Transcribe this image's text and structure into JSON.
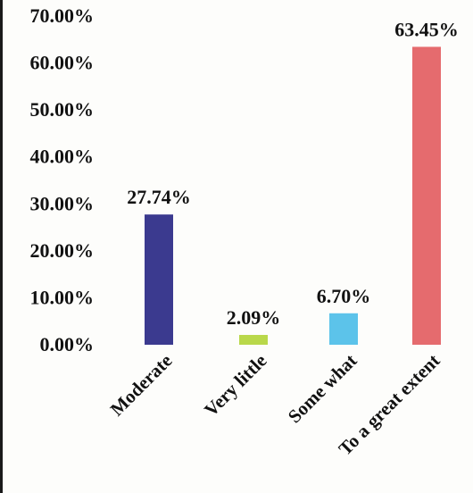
{
  "chart_data": {
    "type": "bar",
    "categories": [
      "Moderate",
      "Very little",
      "Some what",
      "To a great extent"
    ],
    "values": [
      27.74,
      2.09,
      6.7,
      63.45
    ],
    "value_labels": [
      "27.74%",
      "2.09%",
      "6.70%",
      "63.45%"
    ],
    "ylim": [
      0,
      70
    ],
    "yticks": [
      {
        "value": 0,
        "label": "0.00%"
      },
      {
        "value": 10,
        "label": "10.00%"
      },
      {
        "value": 20,
        "label": "20.00%"
      },
      {
        "value": 30,
        "label": "30.00%"
      },
      {
        "value": 40,
        "label": "40.00%"
      },
      {
        "value": 50,
        "label": "50.00%"
      },
      {
        "value": 60,
        "label": "60.00%"
      },
      {
        "value": 70,
        "label": "70.00%"
      }
    ],
    "colors": [
      "#3b3a8f",
      "#b9d84a",
      "#5cc3ea",
      "#e56b6e"
    ],
    "grid": false,
    "legend": "none"
  }
}
